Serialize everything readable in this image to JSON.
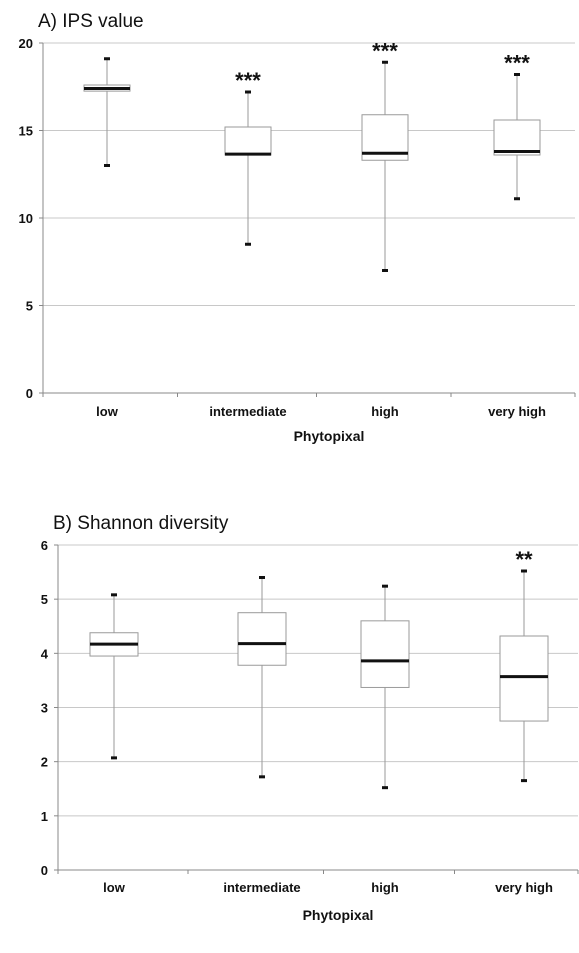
{
  "chart_data": [
    {
      "type": "box",
      "title": "A) IPS value",
      "xlabel": "Phytopixal",
      "ylabel": "",
      "ylim": [
        0,
        20
      ],
      "yticks": [
        0,
        5,
        10,
        15,
        20
      ],
      "grid": true,
      "categories": [
        "low",
        "intermediate",
        "high",
        "very high"
      ],
      "boxes": [
        {
          "min": 13.0,
          "q1": 17.25,
          "median": 17.4,
          "q3": 17.6,
          "max": 19.1,
          "sig": ""
        },
        {
          "min": 8.5,
          "q1": 13.6,
          "median": 13.65,
          "q3": 15.2,
          "max": 17.2,
          "sig": "***"
        },
        {
          "min": 7.0,
          "q1": 13.3,
          "median": 13.7,
          "q3": 15.9,
          "max": 18.9,
          "sig": "***"
        },
        {
          "min": 11.1,
          "q1": 13.6,
          "median": 13.8,
          "q3": 15.6,
          "max": 18.2,
          "sig": "***"
        }
      ]
    },
    {
      "type": "box",
      "title": "B) Shannon diversity",
      "xlabel": "Phytopixal",
      "ylabel": "",
      "ylim": [
        0,
        6
      ],
      "yticks": [
        0,
        1,
        2,
        3,
        4,
        5,
        6
      ],
      "grid": true,
      "categories": [
        "low",
        "intermediate",
        "high",
        "very high"
      ],
      "boxes": [
        {
          "min": 2.07,
          "q1": 3.95,
          "median": 4.17,
          "q3": 4.38,
          "max": 5.08,
          "sig": ""
        },
        {
          "min": 1.72,
          "q1": 3.78,
          "median": 4.18,
          "q3": 4.75,
          "max": 5.4,
          "sig": ""
        },
        {
          "min": 1.52,
          "q1": 3.37,
          "median": 3.86,
          "q3": 4.6,
          "max": 5.24,
          "sig": ""
        },
        {
          "min": 1.65,
          "q1": 2.75,
          "median": 3.57,
          "q3": 4.32,
          "max": 5.52,
          "sig": "**"
        }
      ]
    }
  ]
}
